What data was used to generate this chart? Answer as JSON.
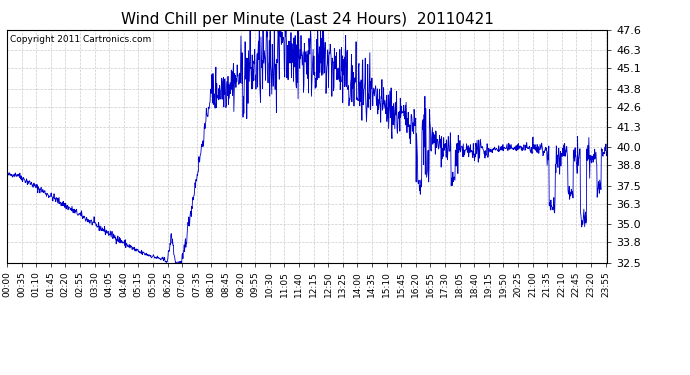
{
  "title": "Wind Chill per Minute (Last 24 Hours)  20110421",
  "copyright_text": "Copyright 2011 Cartronics.com",
  "line_color": "#0000cc",
  "background_color": "#ffffff",
  "grid_color": "#cccccc",
  "ylim": [
    32.5,
    47.6
  ],
  "yticks": [
    32.5,
    33.8,
    35.0,
    36.3,
    37.5,
    38.8,
    40.0,
    41.3,
    42.6,
    43.8,
    45.1,
    46.3,
    47.6
  ],
  "title_fontsize": 11,
  "copyright_fontsize": 6.5,
  "tick_fontsize": 6.5,
  "ytick_fontsize": 8,
  "num_points": 1440,
  "tick_labels": [
    "00:00",
    "00:35",
    "01:10",
    "01:45",
    "02:20",
    "02:55",
    "03:30",
    "04:05",
    "04:40",
    "05:15",
    "05:50",
    "06:25",
    "07:00",
    "07:35",
    "08:10",
    "08:45",
    "09:20",
    "09:55",
    "10:30",
    "11:05",
    "11:40",
    "12:15",
    "12:50",
    "13:25",
    "14:00",
    "14:35",
    "15:10",
    "15:45",
    "16:20",
    "16:55",
    "17:30",
    "18:05",
    "18:40",
    "19:15",
    "19:50",
    "20:25",
    "21:00",
    "21:35",
    "22:10",
    "22:45",
    "23:20",
    "23:55"
  ]
}
